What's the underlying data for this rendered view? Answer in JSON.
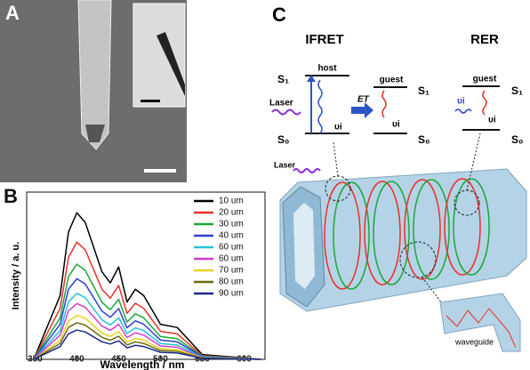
{
  "panels": {
    "a": {
      "label": "A"
    },
    "b": {
      "label": "B"
    },
    "c": {
      "label": "C",
      "ifret": {
        "title": "IFRET",
        "laser": "Laser",
        "host": "host",
        "host_s1": "S₁",
        "host_s0": "S₀",
        "host_nu": "υi",
        "et": "ET",
        "guest": "guest",
        "guest_s1": "S₁",
        "guest_s0": "S₀",
        "guest_nu": "υi"
      },
      "rer": {
        "title": "RER",
        "guest": "guest",
        "s1": "S₁",
        "s0": "S₀",
        "nu_in": "υi",
        "nu_out": "υi"
      },
      "tube": {
        "laser": "Laser",
        "waveguide": "waveguide"
      }
    }
  },
  "chart_data": {
    "type": "line",
    "xlabel": "Wavelength / nm",
    "ylabel": "Intensity / a. u.",
    "x": [
      350,
      380,
      390,
      400,
      410,
      430,
      440,
      450,
      460,
      470,
      480,
      500,
      520,
      550,
      620
    ],
    "xlim": [
      340,
      625
    ],
    "xticks": [
      350,
      400,
      450,
      500,
      550,
      600
    ],
    "ylim": [
      0,
      105
    ],
    "series": [
      {
        "name": "10 um",
        "color": "#000000",
        "values": [
          2,
          40,
          80,
          92,
          86,
          55,
          48,
          58,
          36,
          44,
          40,
          22,
          20,
          3,
          0
        ]
      },
      {
        "name": "20 um",
        "color": "#e8312a",
        "values": [
          1.6,
          32,
          64,
          73.6,
          68.8,
          44,
          38.4,
          46.4,
          28.8,
          35.2,
          32,
          17.6,
          16,
          2.4,
          0
        ]
      },
      {
        "name": "30 um",
        "color": "#1aa83a",
        "values": [
          1.3,
          26,
          52,
          59.8,
          55.9,
          35.8,
          31.2,
          37.7,
          23.4,
          28.6,
          26,
          14.3,
          13,
          2,
          0
        ]
      },
      {
        "name": "40 um",
        "color": "#2c3fd6",
        "values": [
          1.1,
          22,
          44,
          50.6,
          47.3,
          30.3,
          26.4,
          31.9,
          19.8,
          24.2,
          22,
          12.1,
          11,
          1.7,
          0
        ]
      },
      {
        "name": "60 um",
        "color": "#22c4d8",
        "values": [
          0.9,
          18,
          36,
          41.4,
          38.7,
          24.8,
          21.6,
          26.1,
          16.2,
          19.8,
          18,
          9.9,
          9,
          1.4,
          0
        ]
      },
      {
        "name": "60 um",
        "color": "#d43ad0",
        "values": [
          0.8,
          15.2,
          30.4,
          35,
          32.7,
          20.9,
          18.2,
          22,
          13.7,
          16.7,
          15.2,
          8.4,
          7.6,
          1.1,
          0
        ]
      },
      {
        "name": "70 um",
        "color": "#e6d21c",
        "values": [
          0.6,
          12,
          24,
          27.6,
          25.8,
          16.5,
          14.4,
          17.4,
          10.8,
          13.2,
          12,
          6.6,
          6,
          0.9,
          0
        ]
      },
      {
        "name": "80 um",
        "color": "#6b6b12",
        "values": [
          0.5,
          10,
          20,
          23,
          21.5,
          13.8,
          12,
          14.5,
          9,
          11,
          10,
          5.5,
          5,
          0.8,
          0
        ]
      },
      {
        "name": "90 um",
        "color": "#1c2a8a",
        "values": [
          0.4,
          8,
          16,
          18.4,
          17.2,
          11,
          9.6,
          11.6,
          7.2,
          8.8,
          8,
          4.4,
          4,
          0.6,
          0
        ]
      }
    ]
  }
}
